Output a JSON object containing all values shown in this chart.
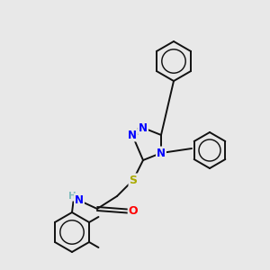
{
  "bg_color": "#e8e8e8",
  "atom_colors": {
    "N": "#0000ff",
    "S": "#aaaa00",
    "O": "#ff0000",
    "H": "#7fbbbb",
    "C": "#111111"
  },
  "bond_color": "#111111",
  "bond_width": 1.4,
  "font_size_atom": 8.5,
  "title": ""
}
